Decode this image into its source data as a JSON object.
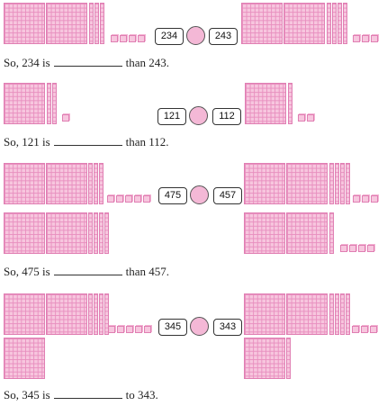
{
  "problems": [
    {
      "left": "234",
      "right": "243",
      "prefix": "So, 234 is",
      "suffix": "than 243."
    },
    {
      "left": "121",
      "right": "112",
      "prefix": "So, 121 is",
      "suffix": "than 112."
    },
    {
      "left": "475",
      "right": "457",
      "prefix": "So, 475 is",
      "suffix": "than 457."
    },
    {
      "left": "345",
      "right": "343",
      "prefix": "So, 345 is",
      "suffix": "to 343."
    }
  ],
  "colors": {
    "block_fill": "#f7c6de",
    "block_line": "#e88fbf",
    "circle": "#f4b8d6"
  }
}
